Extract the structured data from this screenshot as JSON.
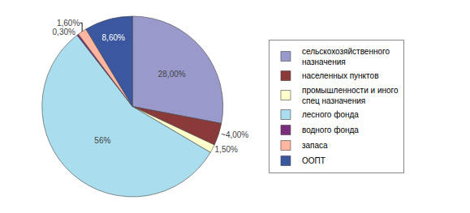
{
  "chart_data": {
    "type": "pie",
    "categories": [
      "сельскохозяйственного\nназначения",
      "населенных пунктов",
      "промышленности и иного\nспец назначения",
      "лесного фонда",
      "водного фонда",
      "запаса",
      "ООПТ"
    ],
    "values": [
      28.0,
      4.0,
      1.5,
      56.0,
      0.3,
      1.6,
      8.6
    ],
    "value_labels": [
      "28,00%",
      "~4,00%",
      "1,50%",
      "56%",
      "0,30%",
      "1,60%",
      "8,60%"
    ],
    "colors": [
      "#9999cc",
      "#8b3a3a",
      "#ffffcc",
      "#aaddee",
      "#7b2e7b",
      "#ffb6a0",
      "#3a57a0"
    ],
    "data_labels": true,
    "legend": "right"
  }
}
